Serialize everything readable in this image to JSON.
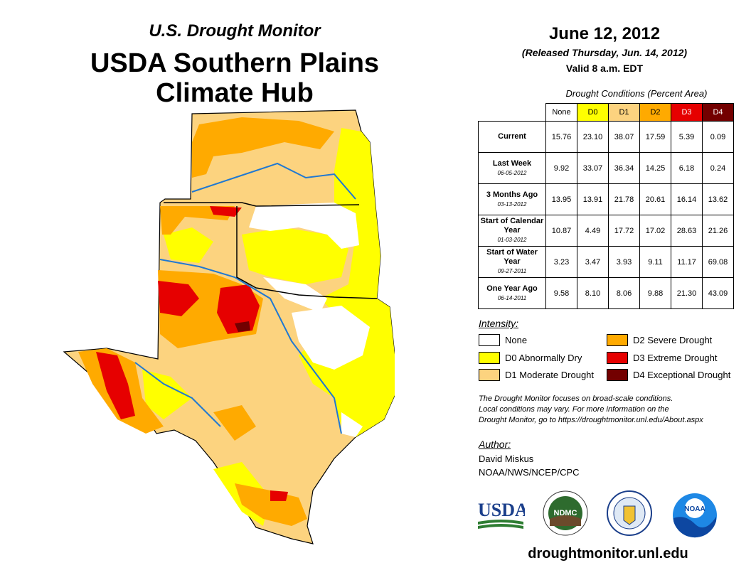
{
  "header": {
    "subtitle": "U.S. Drought Monitor",
    "title": "USDA Southern Plains Climate Hub",
    "date": "June 12, 2012",
    "released": "(Released Thursday, Jun. 14, 2012)",
    "valid": "Valid 8 a.m. EDT"
  },
  "table": {
    "caption": "Drought Conditions (Percent Area)",
    "columns": [
      "None",
      "D0",
      "D1",
      "D2",
      "D3",
      "D4"
    ],
    "column_colors": [
      "#ffffff",
      "#ffff00",
      "#fcd37f",
      "#ffaa00",
      "#e60000",
      "#730000"
    ],
    "rows": [
      {
        "label": "Current",
        "sub": "",
        "values": [
          "15.76",
          "23.10",
          "38.07",
          "17.59",
          "5.39",
          "0.09"
        ]
      },
      {
        "label": "Last Week",
        "sub": "06-05-2012",
        "values": [
          "9.92",
          "33.07",
          "36.34",
          "14.25",
          "6.18",
          "0.24"
        ]
      },
      {
        "label": "3 Months Ago",
        "sub": "03-13-2012",
        "values": [
          "13.95",
          "13.91",
          "21.78",
          "20.61",
          "16.14",
          "13.62"
        ]
      },
      {
        "label": "Start of Calendar Year",
        "sub": "01-03-2012",
        "values": [
          "10.87",
          "4.49",
          "17.72",
          "17.02",
          "28.63",
          "21.26"
        ]
      },
      {
        "label": "Start of Water Year",
        "sub": "09-27-2011",
        "values": [
          "3.23",
          "3.47",
          "3.93",
          "9.11",
          "11.17",
          "69.08"
        ]
      },
      {
        "label": "One Year Ago",
        "sub": "06-14-2011",
        "values": [
          "9.58",
          "8.10",
          "8.06",
          "9.88",
          "21.30",
          "43.09"
        ]
      }
    ]
  },
  "legend": {
    "heading": "Intensity:",
    "items": [
      {
        "label": "None",
        "color": "#ffffff"
      },
      {
        "label": "D0 Abnormally Dry",
        "color": "#ffff00"
      },
      {
        "label": "D1 Moderate Drought",
        "color": "#fcd37f"
      },
      {
        "label": "D2 Severe Drought",
        "color": "#ffaa00"
      },
      {
        "label": "D3 Extreme Drought",
        "color": "#e60000"
      },
      {
        "label": "D4 Exceptional Drought",
        "color": "#730000"
      }
    ]
  },
  "note": {
    "line1": "The Drought Monitor focuses on broad-scale conditions.",
    "line2": "Local conditions may vary. For more information on the",
    "line3": "Drought Monitor, go to https://droughtmonitor.unl.edu/About.aspx"
  },
  "author": {
    "heading": "Author:",
    "name": "David Miskus",
    "org": "NOAA/NWS/NCEP/CPC"
  },
  "logos": {
    "usda": "USDA",
    "ndmc": "NDMC",
    "noaa": "NOAA"
  },
  "footer_url": "droughtmonitor.unl.edu"
}
